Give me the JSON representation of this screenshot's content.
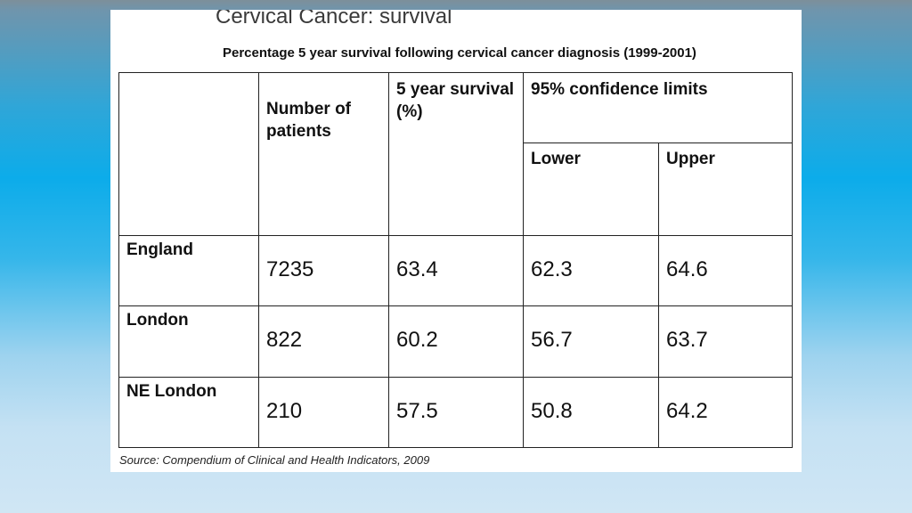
{
  "slide": {
    "title": "Cervical Cancer: survival",
    "subtitle": "Percentage 5 year survival following cervical cancer diagnosis (1999-2001)",
    "source": "Source: Compendium of Clinical and Health Indicators, 2009"
  },
  "table": {
    "headers": {
      "patients": "Number of patients",
      "survival": "5 year survival (%)",
      "confidence": "95% confidence limits",
      "lower": "Lower",
      "upper": "Upper"
    },
    "rows": [
      {
        "region": "England",
        "patients": "7235",
        "survival": "63.4",
        "lower": "62.3",
        "upper": "64.6"
      },
      {
        "region": "London",
        "patients": "822",
        "survival": "60.2",
        "lower": "56.7",
        "upper": "63.7"
      },
      {
        "region": "NE London",
        "patients": "210",
        "survival": "57.5",
        "lower": "50.8",
        "upper": "64.2"
      }
    ]
  }
}
